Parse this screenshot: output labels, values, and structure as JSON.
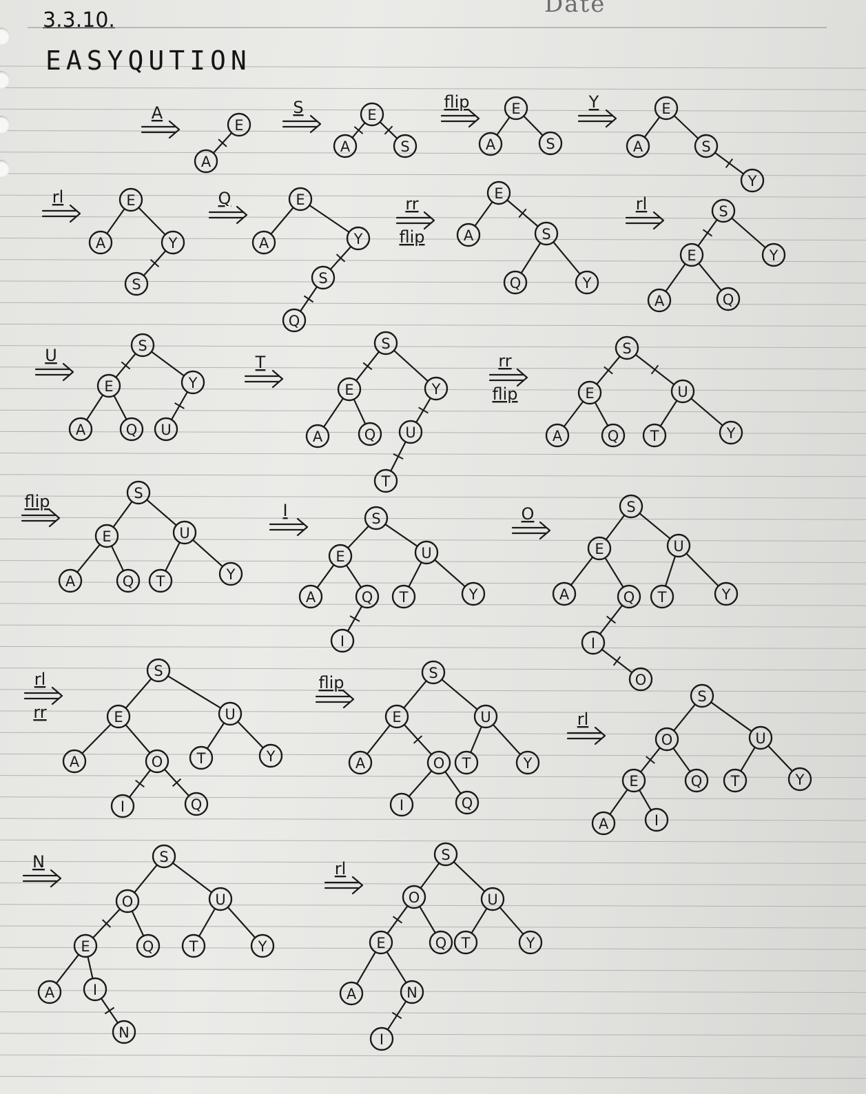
{
  "header": {
    "date_label": "Date"
  },
  "page": {
    "code": "3.3.10.",
    "word": "EASYQUTION"
  },
  "steps": [
    {
      "op": [
        "A"
      ],
      "nodes": [
        [
          "E",
          null
        ],
        [
          "A",
          "E",
          true
        ]
      ]
    },
    {
      "op": [
        "S"
      ],
      "nodes": [
        [
          "E",
          null
        ],
        [
          "A",
          "E",
          true
        ],
        [
          "S",
          "E",
          true
        ]
      ]
    },
    {
      "op": [
        "flip"
      ],
      "nodes": [
        [
          "E",
          null
        ],
        [
          "A",
          "E"
        ],
        [
          "S",
          "E"
        ]
      ]
    },
    {
      "op": [
        "Y"
      ],
      "nodes": [
        [
          "E",
          null
        ],
        [
          "A",
          "E"
        ],
        [
          "S",
          "E"
        ],
        [
          "Y",
          "S",
          true
        ]
      ]
    },
    {
      "op": [
        "rl"
      ],
      "nodes": [
        [
          "E",
          null
        ],
        [
          "A",
          "E"
        ],
        [
          "Y",
          "E"
        ],
        [
          "S",
          "Y",
          true
        ]
      ]
    },
    {
      "op": [
        "Q"
      ],
      "nodes": [
        [
          "E",
          null
        ],
        [
          "A",
          "E"
        ],
        [
          "Y",
          "E"
        ],
        [
          "S",
          "Y",
          true
        ],
        [
          "Q",
          "S",
          true
        ]
      ]
    },
    {
      "op": [
        "rr",
        "flip"
      ],
      "nodes": [
        [
          "E",
          null
        ],
        [
          "A",
          "E"
        ],
        [
          "S",
          "E",
          true
        ],
        [
          "Q",
          "S"
        ],
        [
          "Y",
          "S"
        ]
      ]
    },
    {
      "op": [
        "rl"
      ],
      "nodes": [
        [
          "S",
          null
        ],
        [
          "E",
          "S",
          true
        ],
        [
          "Y",
          "S"
        ],
        [
          "A",
          "E"
        ],
        [
          "Q",
          "E"
        ]
      ]
    },
    {
      "op": [
        "U"
      ],
      "nodes": [
        [
          "S",
          null
        ],
        [
          "E",
          "S",
          true
        ],
        [
          "Y",
          "S"
        ],
        [
          "A",
          "E"
        ],
        [
          "Q",
          "E"
        ],
        [
          "U",
          "Y",
          true
        ]
      ]
    },
    {
      "op": [
        "T"
      ],
      "nodes": [
        [
          "S",
          null
        ],
        [
          "E",
          "S",
          true
        ],
        [
          "Y",
          "S"
        ],
        [
          "A",
          "E"
        ],
        [
          "Q",
          "E"
        ],
        [
          "U",
          "Y",
          true
        ],
        [
          "T",
          "U",
          true
        ]
      ]
    },
    {
      "op": [
        "rr",
        "flip"
      ],
      "nodes": [
        [
          "S",
          null
        ],
        [
          "E",
          "S",
          true
        ],
        [
          "U",
          "S",
          true
        ],
        [
          "A",
          "E"
        ],
        [
          "Q",
          "E"
        ],
        [
          "T",
          "U"
        ],
        [
          "Y",
          "U"
        ]
      ]
    },
    {
      "op": [
        "flip"
      ],
      "nodes": [
        [
          "S",
          null
        ],
        [
          "E",
          "S"
        ],
        [
          "U",
          "S"
        ],
        [
          "A",
          "E"
        ],
        [
          "Q",
          "E"
        ],
        [
          "T",
          "U"
        ],
        [
          "Y",
          "U"
        ]
      ]
    },
    {
      "op": [
        "I"
      ],
      "nodes": [
        [
          "S",
          null
        ],
        [
          "E",
          "S"
        ],
        [
          "U",
          "S"
        ],
        [
          "A",
          "E"
        ],
        [
          "Q",
          "E"
        ],
        [
          "T",
          "U"
        ],
        [
          "Y",
          "U"
        ],
        [
          "I",
          "Q",
          true
        ]
      ]
    },
    {
      "op": [
        "O"
      ],
      "nodes": [
        [
          "S",
          null
        ],
        [
          "E",
          "S"
        ],
        [
          "U",
          "S"
        ],
        [
          "A",
          "E"
        ],
        [
          "Q",
          "E"
        ],
        [
          "T",
          "U"
        ],
        [
          "Y",
          "U"
        ],
        [
          "I",
          "Q",
          true
        ],
        [
          "O",
          "I",
          true
        ]
      ]
    },
    {
      "op": [
        "rl",
        "rr"
      ],
      "nodes": [
        [
          "S",
          null
        ],
        [
          "E",
          "S"
        ],
        [
          "U",
          "S"
        ],
        [
          "A",
          "E"
        ],
        [
          "O",
          "E"
        ],
        [
          "T",
          "U"
        ],
        [
          "Y",
          "U"
        ],
        [
          "I",
          "O",
          true
        ],
        [
          "Q",
          "O",
          true
        ]
      ]
    },
    {
      "op": [
        "flip"
      ],
      "nodes": [
        [
          "S",
          null
        ],
        [
          "E",
          "S"
        ],
        [
          "U",
          "S"
        ],
        [
          "A",
          "E"
        ],
        [
          "O",
          "E",
          true
        ],
        [
          "T",
          "U"
        ],
        [
          "Y",
          "U"
        ],
        [
          "I",
          "O"
        ],
        [
          "Q",
          "O"
        ]
      ]
    },
    {
      "op": [
        "rl"
      ],
      "nodes": [
        [
          "S",
          null
        ],
        [
          "O",
          "S"
        ],
        [
          "U",
          "S"
        ],
        [
          "E",
          "O",
          true
        ],
        [
          "Q",
          "O"
        ],
        [
          "T",
          "U"
        ],
        [
          "Y",
          "U"
        ],
        [
          "A",
          "E"
        ],
        [
          "I",
          "E"
        ]
      ]
    },
    {
      "op": [
        "N"
      ],
      "nodes": [
        [
          "S",
          null
        ],
        [
          "O",
          "S"
        ],
        [
          "U",
          "S"
        ],
        [
          "E",
          "O",
          true
        ],
        [
          "Q",
          "O"
        ],
        [
          "T",
          "U"
        ],
        [
          "Y",
          "U"
        ],
        [
          "A",
          "E"
        ],
        [
          "I",
          "E"
        ],
        [
          "N",
          "I",
          true
        ]
      ]
    },
    {
      "op": [
        "rl"
      ],
      "nodes": [
        [
          "S",
          null
        ],
        [
          "O",
          "S"
        ],
        [
          "U",
          "S"
        ],
        [
          "E",
          "O",
          true
        ],
        [
          "Q",
          "O"
        ],
        [
          "T",
          "U"
        ],
        [
          "Y",
          "U"
        ],
        [
          "A",
          "E"
        ],
        [
          "N",
          "E"
        ],
        [
          "I",
          "N",
          true
        ]
      ]
    }
  ]
}
